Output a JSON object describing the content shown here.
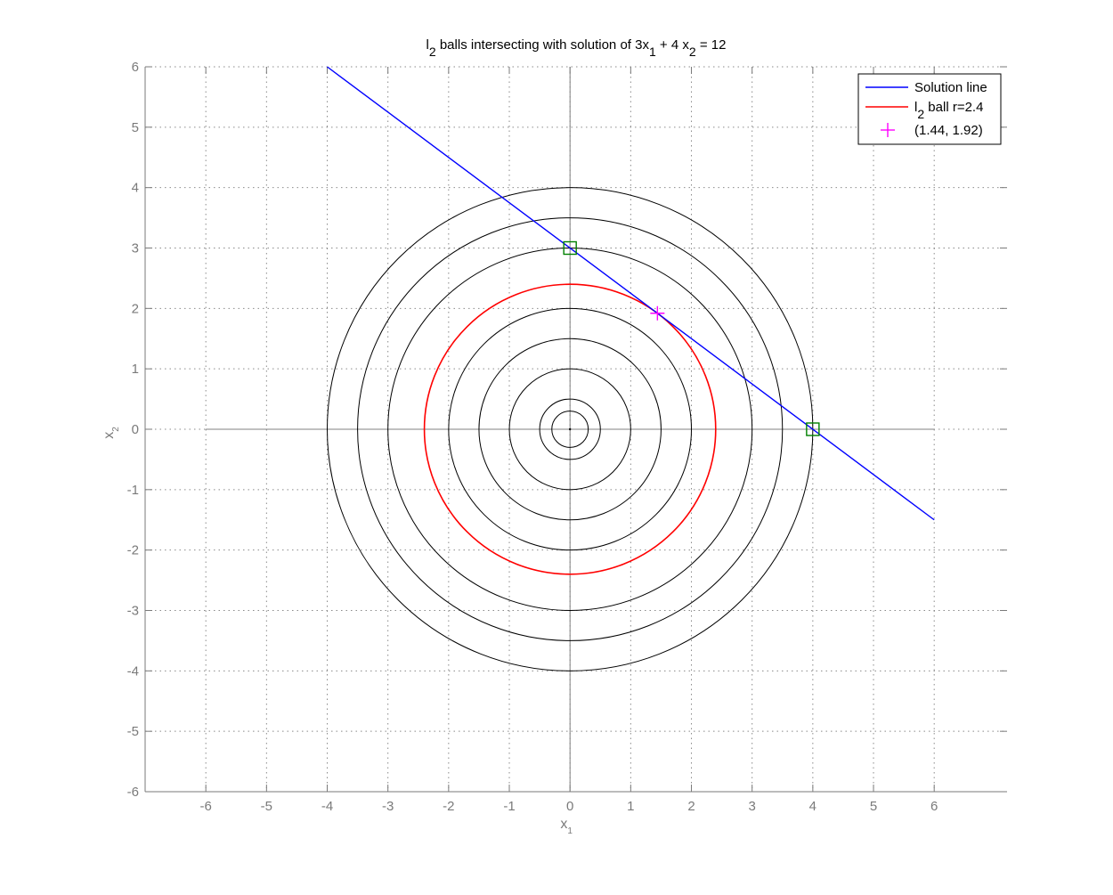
{
  "chart_data": {
    "type": "line",
    "title": {
      "parts": [
        {
          "t": "l",
          "sub": false
        },
        {
          "t": "2",
          "sub": true
        },
        {
          "t": " balls intersecting with solution of 3x",
          "sub": false
        },
        {
          "t": "1",
          "sub": true
        },
        {
          "t": " + 4 x",
          "sub": false
        },
        {
          "t": "2",
          "sub": true
        },
        {
          "t": " = 12",
          "sub": false
        }
      ]
    },
    "xlabel": {
      "base": "x",
      "sub": "1"
    },
    "ylabel": {
      "base": "x",
      "sub": "2"
    },
    "xlim": [
      -7,
      7.2
    ],
    "ylim": [
      -6,
      6
    ],
    "xticks": [
      -6,
      -5,
      -4,
      -3,
      -2,
      -1,
      0,
      1,
      2,
      3,
      4,
      5,
      6
    ],
    "yticks": [
      -6,
      -5,
      -4,
      -3,
      -2,
      -1,
      0,
      1,
      2,
      3,
      4,
      5,
      6
    ],
    "grid": true,
    "legend_position": "top-right",
    "axes_lines": {
      "horizontal": {
        "x": [
          -6,
          6
        ],
        "y": 0
      },
      "vertical": {
        "x": 0,
        "y": [
          -6,
          6
        ]
      },
      "color": "#808080"
    },
    "circles": {
      "center": [
        0,
        0
      ],
      "radii": [
        0.3,
        0.5,
        1.0,
        1.5,
        2.0,
        3.0,
        3.5,
        4.0
      ],
      "color": "#000000"
    },
    "series": [
      {
        "name": "Solution line",
        "kind": "line",
        "color": "#0000ff",
        "x": [
          -4,
          6
        ],
        "y": [
          6,
          -1.5
        ]
      },
      {
        "name": {
          "base": "l",
          "sub": "2",
          "rest": " ball r=2.4"
        },
        "kind": "circle",
        "color": "#ff0000",
        "center": [
          0,
          0
        ],
        "radius": 2.4
      },
      {
        "name": "(1.44, 1.92)",
        "kind": "marker",
        "marker": "plus",
        "color": "#ff00ff",
        "x": [
          1.44
        ],
        "y": [
          1.92
        ]
      }
    ],
    "square_markers": {
      "color": "#008000",
      "points": [
        [
          0,
          3
        ],
        [
          4,
          0
        ]
      ]
    }
  }
}
